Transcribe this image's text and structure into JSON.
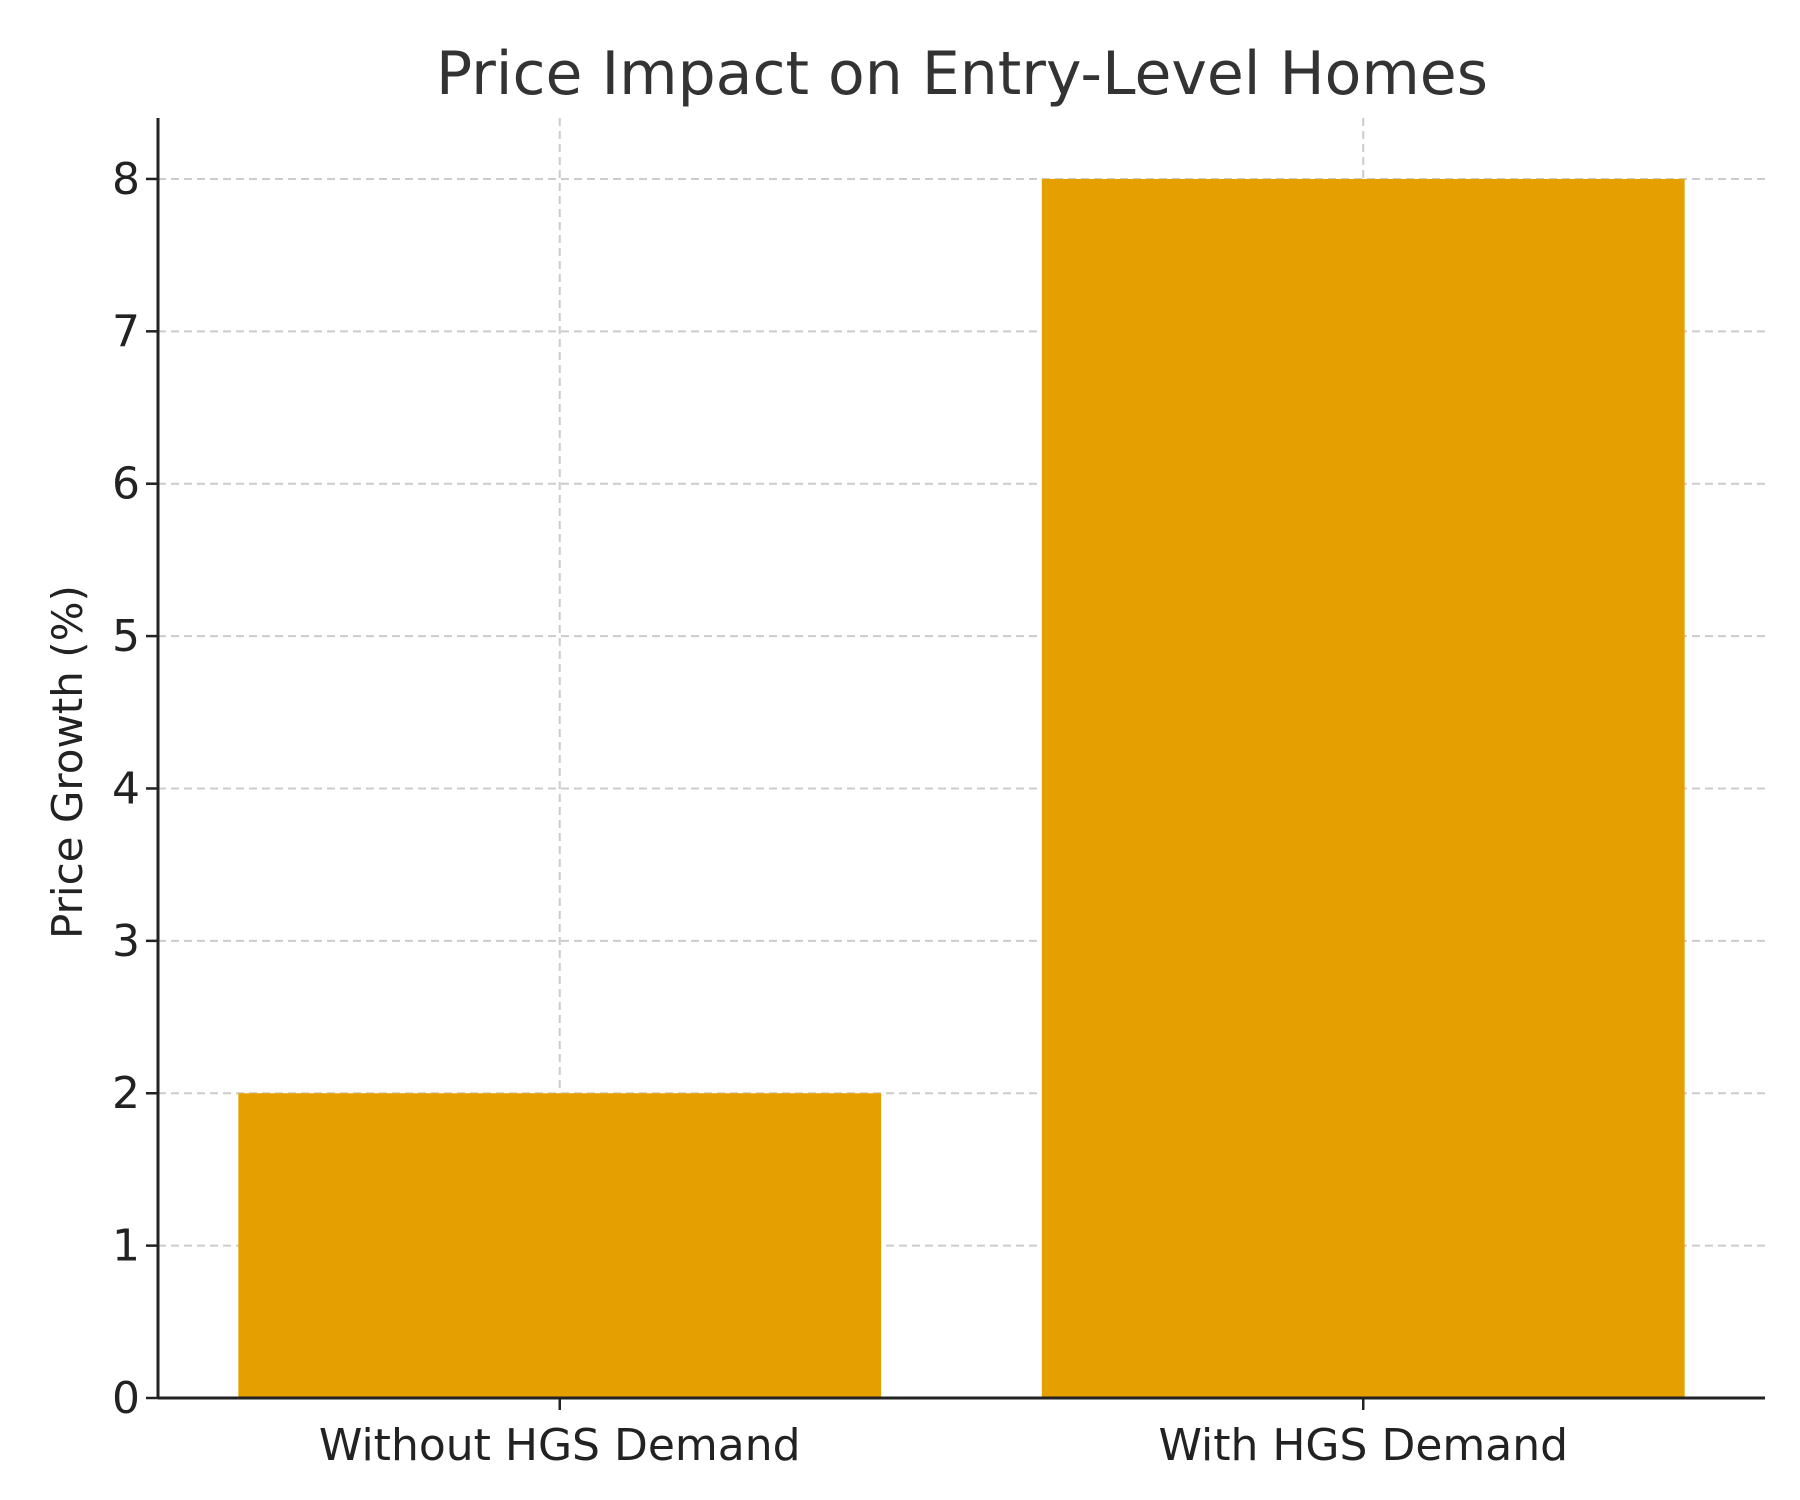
{
  "chart_data": {
    "type": "bar",
    "title": "Price Impact on Entry-Level Homes",
    "xlabel": "",
    "ylabel": "Price Growth (%)",
    "categories": [
      "Without HGS Demand",
      "With HGS Demand"
    ],
    "values": [
      2,
      8
    ],
    "ylim": [
      0,
      8.4
    ],
    "yticks": [
      0,
      1,
      2,
      3,
      4,
      5,
      6,
      7,
      8
    ],
    "grid": true,
    "bar_color": "#E5A000"
  }
}
